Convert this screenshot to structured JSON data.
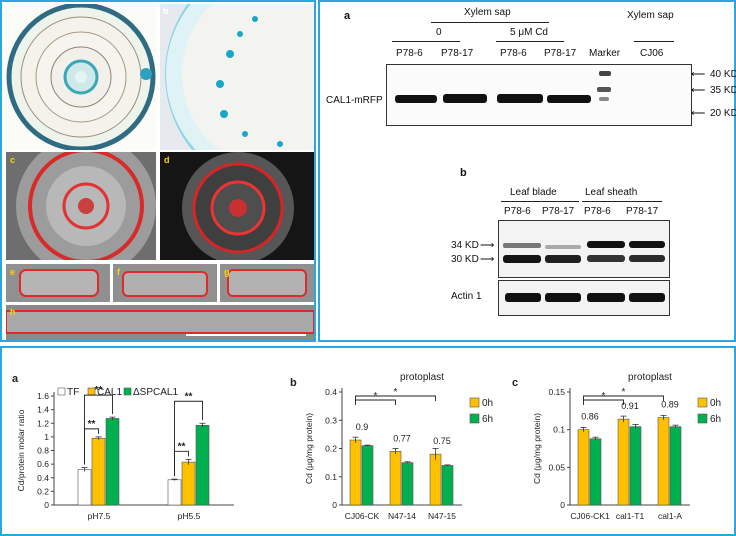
{
  "top_left": {
    "panel_letters": [
      "a",
      "b",
      "c",
      "d",
      "e",
      "f",
      "g",
      "h"
    ]
  },
  "western_a": {
    "letter": "a",
    "header_xylem": "Xylem sap",
    "header_zero": "0",
    "header_cd": "5 μM Cd",
    "header_xylem2": "Xylem sap",
    "lanes": [
      "P78-6",
      "P78-17",
      "P78-6",
      "P78-17",
      "Marker",
      "CJ06"
    ],
    "row_label": "CAL1-mRFP",
    "markers": [
      "40 KD",
      "35 KD",
      "20 KD"
    ]
  },
  "western_b": {
    "letter": "b",
    "header_blade": "Leaf   blade",
    "header_sheath": "Leaf sheath",
    "lanes": [
      "P78-6",
      "P78-17",
      "P78-6",
      "P78-17"
    ],
    "markers": [
      "34 KD",
      "30 KD"
    ],
    "row_label": "Actin 1"
  },
  "chart_data": [
    {
      "type": "bar",
      "letter": "a",
      "ylabel": "Cd/protein molar ratio",
      "ylim": [
        0,
        1.6
      ],
      "yticks": [
        "0",
        "0.2",
        "0.4",
        "0.6",
        "0.8",
        "1",
        "1.2",
        "1.4",
        "1.6"
      ],
      "categories": [
        "pH7.5",
        "pH5.5"
      ],
      "series": [
        {
          "name": "TF",
          "color": "#ffffff",
          "values": [
            0.52,
            0.37
          ]
        },
        {
          "name": "CAL1",
          "color": "#ffc000",
          "values": [
            0.98,
            0.63
          ]
        },
        {
          "name": "ΔSPCAL1",
          "color": "#00b050",
          "values": [
            1.27,
            1.17
          ]
        }
      ],
      "significance": [
        "**",
        "**",
        "**",
        "**"
      ]
    },
    {
      "type": "bar",
      "letter": "b",
      "title": "protoplast",
      "ylabel": "Cd (μg/mg protein)",
      "ylim": [
        0,
        0.4
      ],
      "yticks": [
        "0",
        "0.1",
        "0.2",
        "0.3",
        "0.4"
      ],
      "categories": [
        "CJ06-CK",
        "N47-14",
        "N47-15"
      ],
      "series": [
        {
          "name": "0h",
          "color": "#ffc000",
          "values": [
            0.23,
            0.19,
            0.18
          ]
        },
        {
          "name": "6h",
          "color": "#00b050",
          "values": [
            0.21,
            0.15,
            0.14
          ]
        }
      ],
      "ratios": [
        "0.9",
        "0.77",
        "0.75"
      ],
      "significance": [
        "*",
        "*"
      ]
    },
    {
      "type": "bar",
      "letter": "c",
      "title": "protoplast",
      "ylabel": "Cd (μg/mg protein)",
      "ylim": [
        0,
        0.15
      ],
      "yticks": [
        "0",
        "0.05",
        "0.1",
        "0.15"
      ],
      "categories": [
        "CJ06-CK1",
        "cal1-T1",
        "cal1-A"
      ],
      "series": [
        {
          "name": "0h",
          "color": "#ffc000",
          "values": [
            0.1,
            0.114,
            0.116
          ]
        },
        {
          "name": "6h",
          "color": "#00b050",
          "values": [
            0.088,
            0.104,
            0.104
          ]
        }
      ],
      "ratios": [
        "0.86",
        "0.91",
        "0.89"
      ],
      "significance": [
        "*",
        "*"
      ]
    }
  ]
}
